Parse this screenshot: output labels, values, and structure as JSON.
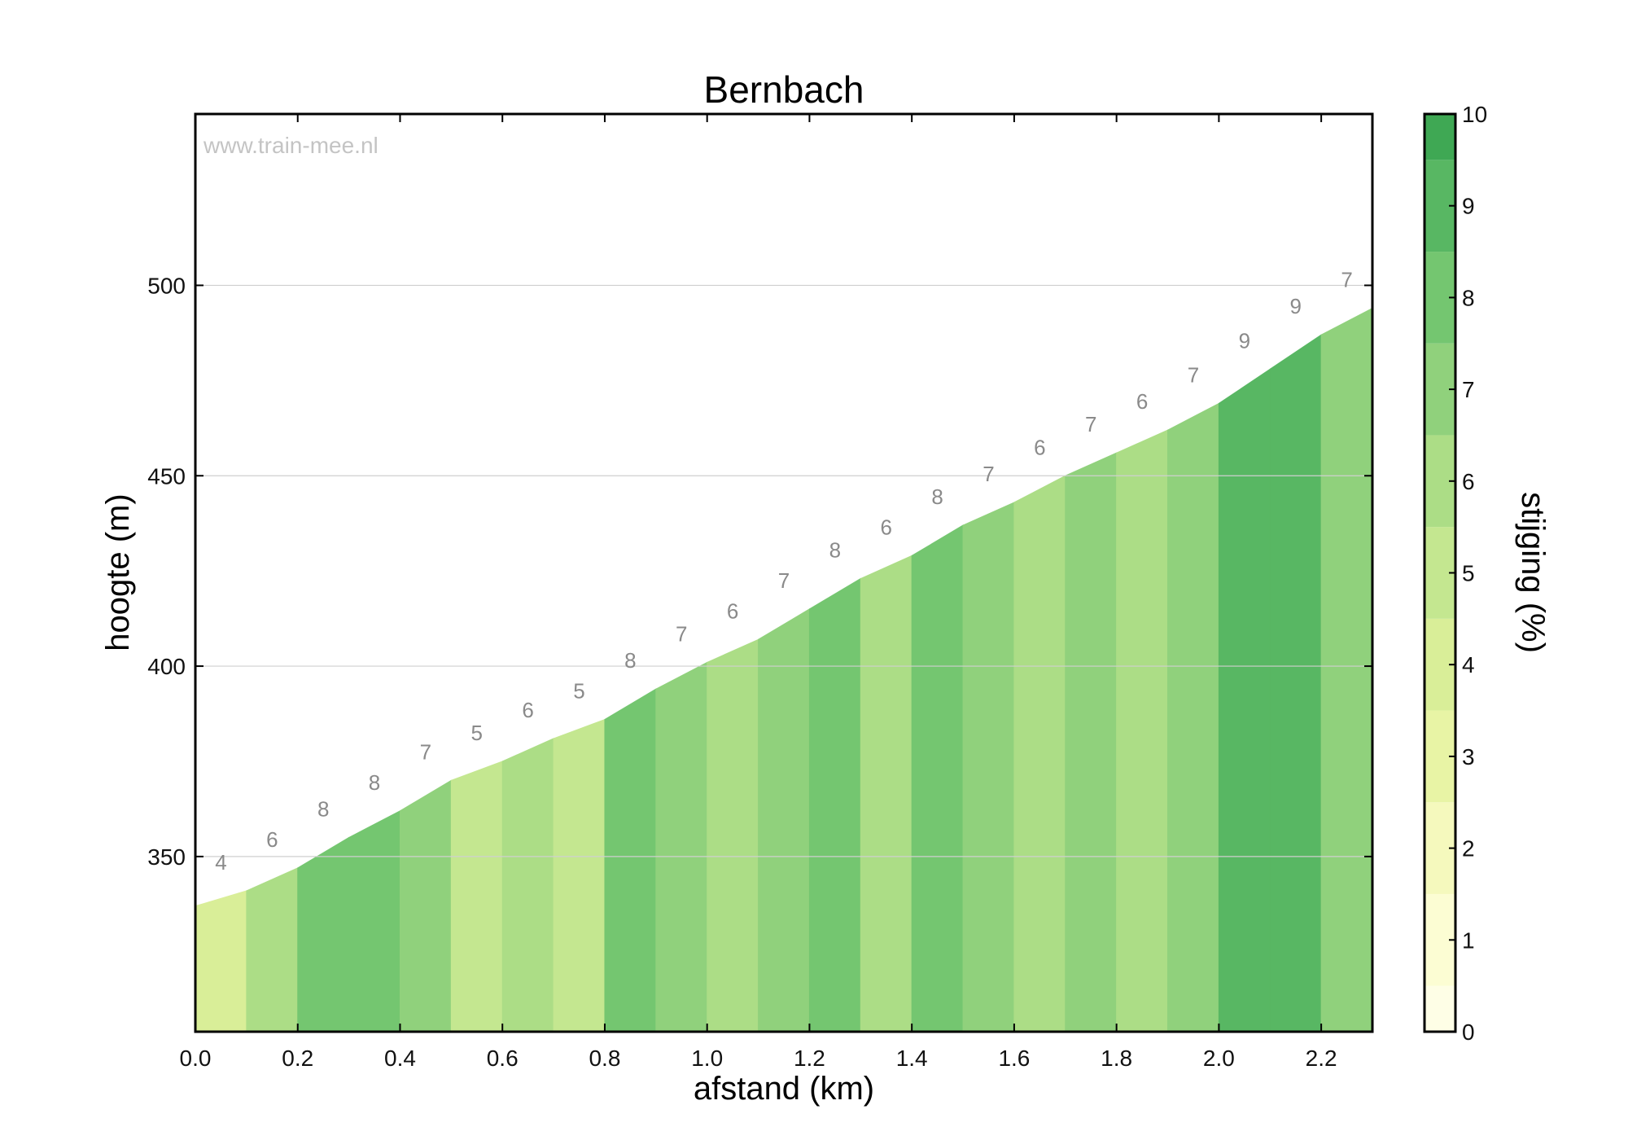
{
  "chart_data": {
    "type": "area",
    "title": "Bernbach",
    "watermark": "www.train-mee.nl",
    "xlabel": "afstand (km)",
    "ylabel": "hoogte (m)",
    "xlim": [
      0.0,
      2.3
    ],
    "ylim": [
      304,
      545
    ],
    "xticks": [
      "0.0",
      "0.2",
      "0.4",
      "0.6",
      "0.8",
      "1.0",
      "1.2",
      "1.4",
      "1.6",
      "1.8",
      "2.0",
      "2.2"
    ],
    "yticks": [
      "350",
      "400",
      "450",
      "500"
    ],
    "grid": "horizontal",
    "x": [
      0.0,
      0.1,
      0.2,
      0.3,
      0.4,
      0.5,
      0.6,
      0.7,
      0.8,
      0.9,
      1.0,
      1.1,
      1.2,
      1.3,
      1.4,
      1.5,
      1.6,
      1.7,
      1.8,
      1.9,
      2.0,
      2.1,
      2.2,
      2.3
    ],
    "elevation": [
      337,
      341,
      347,
      355,
      362,
      370,
      375,
      381,
      386,
      394,
      401,
      407,
      415,
      423,
      429,
      437,
      443,
      450,
      456,
      462,
      469,
      478,
      487,
      494
    ],
    "segment_gradients": [
      "4",
      "6",
      "8",
      "8",
      "7",
      "5",
      "6",
      "5",
      "8",
      "7",
      "6",
      "7",
      "8",
      "6",
      "8",
      "7",
      "6",
      "7",
      "6",
      "7",
      "9",
      "9",
      "7"
    ],
    "colorbar": {
      "label": "stijging (%)",
      "range": [
        0,
        10
      ],
      "ticks": [
        "0",
        "1",
        "2",
        "3",
        "4",
        "5",
        "6",
        "7",
        "8",
        "9",
        "10"
      ],
      "colors": [
        "#fefee6",
        "#fcfdd3",
        "#f5f9bd",
        "#e8f4a5",
        "#d9ee98",
        "#c4e790",
        "#acdd86",
        "#90d17c",
        "#74c670",
        "#58b763",
        "#3fa854"
      ]
    }
  }
}
